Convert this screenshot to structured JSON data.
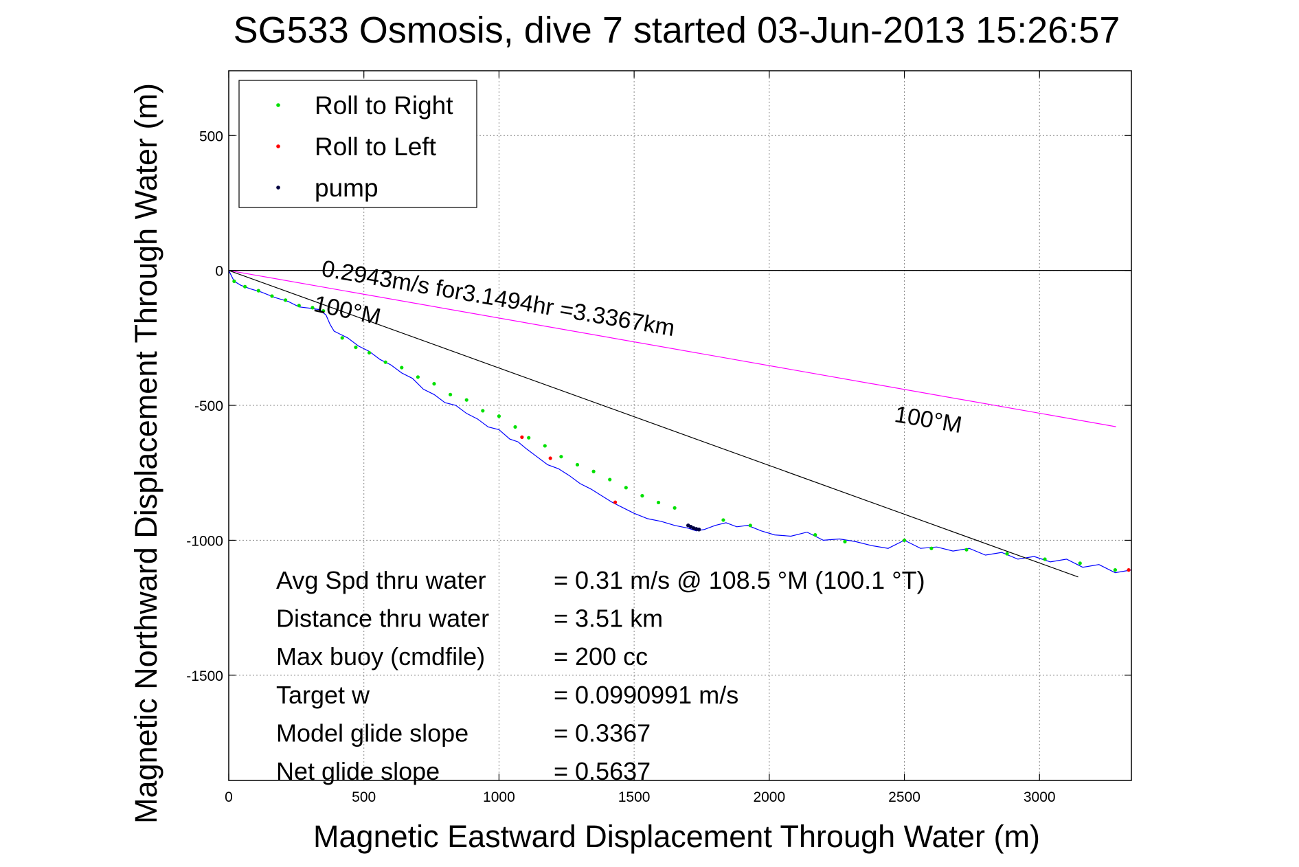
{
  "chart_data": {
    "type": "line",
    "title": "SG533 Osmosis, dive 7 started 03-Jun-2013 15:26:57",
    "xlabel": "Magnetic Eastward Displacement Through Water (m)",
    "ylabel": "Magnetic Northward Displacement Through Water (m)",
    "xlim": [
      0,
      3340
    ],
    "ylim": [
      -1890,
      740
    ],
    "grid": true,
    "legend_position": "top-left",
    "xticks": [
      0,
      500,
      1000,
      1500,
      2000,
      2500,
      3000
    ],
    "yticks": [
      500,
      0,
      -500,
      -1000,
      -1500
    ],
    "legend": [
      {
        "label": "Roll to Right",
        "color": "#00e000"
      },
      {
        "label": "Roll to Left",
        "color": "#ff0000"
      },
      {
        "label": "pump",
        "color": "#000040"
      }
    ],
    "series": [
      {
        "color": "#0000ff",
        "x": [
          0,
          20,
          45,
          80,
          120,
          170,
          220,
          260,
          300,
          335,
          360,
          375,
          390,
          410,
          440,
          480,
          520,
          560,
          600,
          640,
          680,
          720,
          760,
          800,
          840,
          880,
          920,
          960,
          1000,
          1040,
          1070,
          1100,
          1140,
          1180,
          1220,
          1260,
          1300,
          1340,
          1380,
          1420,
          1460,
          1500,
          1550,
          1600,
          1650,
          1700,
          1730,
          1760,
          1800,
          1840,
          1880,
          1920,
          1970,
          2020,
          2080,
          2140,
          2200,
          2260,
          2320,
          2380,
          2440,
          2500,
          2560,
          2620,
          2680,
          2740,
          2800,
          2860,
          2920,
          2980,
          3040,
          3100,
          3160,
          3220,
          3280,
          3340
        ],
        "y": [
          0,
          -40,
          -55,
          -68,
          -80,
          -100,
          -115,
          -135,
          -140,
          -145,
          -165,
          -200,
          -225,
          -235,
          -250,
          -280,
          -300,
          -330,
          -350,
          -380,
          -400,
          -440,
          -460,
          -490,
          -500,
          -530,
          -550,
          -580,
          -590,
          -625,
          -635,
          -660,
          -690,
          -720,
          -735,
          -760,
          -790,
          -810,
          -835,
          -860,
          -880,
          -900,
          -920,
          -930,
          -945,
          -955,
          -965,
          -960,
          -945,
          -935,
          -950,
          -945,
          -965,
          -980,
          -985,
          -970,
          -1000,
          -995,
          -1005,
          -1020,
          -1030,
          -1000,
          -1030,
          -1025,
          -1040,
          -1030,
          -1055,
          -1045,
          -1070,
          -1060,
          -1080,
          -1070,
          -1100,
          -1090,
          -1120,
          -1110
        ]
      },
      {
        "label": "0.2943m/s for3.1494hr =3.3367km",
        "color": "#ff00ff",
        "x": [
          0,
          3283
        ],
        "y": [
          0,
          -579
        ]
      },
      {
        "label": "100°M",
        "color": "#000000",
        "x": [
          0,
          3143
        ],
        "y": [
          0,
          -1136
        ]
      }
    ],
    "roll_right_x": [
      20,
      60,
      110,
      160,
      210,
      260,
      310,
      350,
      420,
      470,
      520,
      580,
      640,
      700,
      760,
      820,
      880,
      940,
      1000,
      1060,
      1110,
      1170,
      1230,
      1290,
      1350,
      1410,
      1470,
      1530,
      1590,
      1650,
      1830,
      1930,
      2170,
      2280,
      2500,
      2600,
      2730,
      2880,
      3020,
      3150,
      3280
    ],
    "roll_right_y": [
      -40,
      -60,
      -75,
      -95,
      -110,
      -130,
      -138,
      -150,
      -250,
      -285,
      -305,
      -340,
      -360,
      -395,
      -420,
      -460,
      -480,
      -520,
      -540,
      -580,
      -620,
      -650,
      -690,
      -720,
      -745,
      -775,
      -805,
      -835,
      -860,
      -880,
      -925,
      -945,
      -980,
      -1005,
      -1000,
      -1030,
      -1035,
      -1050,
      -1070,
      -1085,
      -1110
    ],
    "roll_left_x": [
      1085,
      1190,
      1430,
      3330
    ],
    "roll_left_y": [
      -618,
      -696,
      -859,
      -1110
    ],
    "pump_x": [
      1700,
      1710,
      1720,
      1730,
      1740
    ],
    "pump_y": [
      -945,
      -950,
      -955,
      -958,
      -960
    ],
    "annotations": [
      {
        "text": "0.2943m/s for3.1494hr =3.3367km",
        "x": 340,
        "y": -20
      },
      {
        "text": "100°M",
        "x": 310,
        "y": -150
      },
      {
        "text": "100°M",
        "x": 2460,
        "y": -560
      }
    ],
    "stats": [
      {
        "label": "Avg Spd thru water",
        "value": "=  0.31 m/s @ 108.5 °M (100.1 °T)"
      },
      {
        "label": "Distance thru water",
        "value": "=  3.51 km"
      },
      {
        "label": "Max buoy (cmdfile)",
        "value": "= 200 cc"
      },
      {
        "label": "Target w",
        "value": "= 0.0990991 m/s"
      },
      {
        "label": "Model glide slope",
        "value": "= 0.3367"
      },
      {
        "label": "Net glide slope",
        "value": "= 0.5637"
      }
    ]
  }
}
